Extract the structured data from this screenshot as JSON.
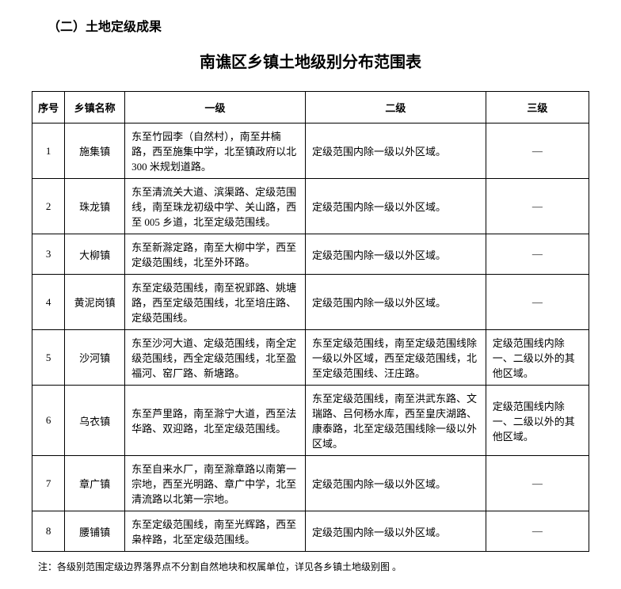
{
  "section_header": "（二）土地定级成果",
  "title": "南谯区乡镇土地级别分布范围表",
  "columns": {
    "seq": "序号",
    "name": "乡镇名称",
    "level1": "一级",
    "level2": "二级",
    "level3": "三级"
  },
  "rows": [
    {
      "seq": "1",
      "name": "施集镇",
      "l1": "东至竹园李（自然村），南至井楠路，西至施集中学，北至镇政府以北 300 米规划道路。",
      "l2": "定级范围内除一级以外区域。",
      "l3": "—"
    },
    {
      "seq": "2",
      "name": "珠龙镇",
      "l1": "东至清流关大道、滨渠路、定级范围线，南至珠龙初级中学、关山路，西至 005 乡道，北至定级范围线。",
      "l2": "定级范围内除一级以外区域。",
      "l3": "—"
    },
    {
      "seq": "3",
      "name": "大柳镇",
      "l1": "东至新滁定路，南至大柳中学，西至定级范围线，北至外环路。",
      "l2": "定级范围内除一级以外区域。",
      "l3": "—"
    },
    {
      "seq": "4",
      "name": "黄泥岗镇",
      "l1": "东至定级范围线，南至祝郢路、姚塘路，西至定级范围线，北至培庄路、定级范围线。",
      "l2": "定级范围内除一级以外区域。",
      "l3": "—"
    },
    {
      "seq": "5",
      "name": "沙河镇",
      "l1": "东至沙河大道、定级范围线，南全定级范围线，西全定级范围线，北至盈福河、窑厂路、新塘路。",
      "l2": "东至定级范围线，南至定级范围线除一级以外区域，西至定级范围线，北至定级范围线、汪庄路。",
      "l3": "定级范围线内除一、二级以外的其他区域。"
    },
    {
      "seq": "6",
      "name": "乌衣镇",
      "l1": "东至芦里路，南至滁宁大道，西至法华路、双迎路，北至定级范围线。",
      "l2": "东至定级范围线，南至洪武东路、文瑞路、吕何杨水库，西至皇庆湖路、康泰路，北至定级范围线除一级以外区域。",
      "l3": "定级范围线内除一、二级以外的其他区域。"
    },
    {
      "seq": "7",
      "name": "章广镇",
      "l1": "东至自来水厂，南至滁章路以南第一宗地，西至光明路、章广中学，北至清流路以北第一宗地。",
      "l2": "定级范围内除一级以外区域。",
      "l3": "—"
    },
    {
      "seq": "8",
      "name": "腰铺镇",
      "l1": "东至定级范围线，南至光辉路，西至枭梓路，北至定级范围线。",
      "l2": "定级范围内除一级以外区域。",
      "l3": "—"
    }
  ],
  "footnote": "注：各级别范围定级边界落界点不分割自然地块和权属单位，详见各乡镇土地级别图 。",
  "styling": {
    "background_color": "#ffffff",
    "text_color": "#000000",
    "border_color": "#000000",
    "title_fontsize": 20,
    "section_fontsize": 16,
    "cell_fontsize": 13,
    "footnote_fontsize": 12,
    "col_widths": {
      "seq": 38,
      "name": 70,
      "l1": 210,
      "l2": 210,
      "l3": 120
    }
  }
}
